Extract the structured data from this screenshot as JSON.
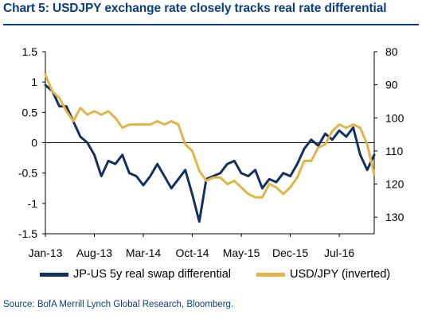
{
  "title": "Chart 5: USDJPY exchange rate closely tracks real rate differential",
  "source": "Source: BofA Merrill Lynch Global Research, Bloomberg.",
  "colors": {
    "title": "#0a3d82",
    "series1": "#13315f",
    "series2": "#e2b548"
  },
  "chart_data": {
    "type": "line",
    "title": "Chart 5: USDJPY exchange rate closely tracks real rate differential",
    "x_tick_labels": [
      "Jan-13",
      "Aug-13",
      "Mar-14",
      "Oct-14",
      "May-15",
      "Dec-15",
      "Jul-16"
    ],
    "x_ticks": [
      "2013-01",
      "2013-08",
      "2014-03",
      "2014-10",
      "2015-05",
      "2015-12",
      "2016-07"
    ],
    "xlim": [
      "2013-01",
      "2016-12"
    ],
    "y_left": {
      "lim": [
        -1.5,
        1.5
      ],
      "ticks": [
        "1.5",
        "1",
        "0.5",
        "0",
        "-0.5",
        "-1",
        "-1.5"
      ],
      "values": [
        1.5,
        1,
        0.5,
        0,
        -0.5,
        -1,
        -1.5
      ]
    },
    "y_right": {
      "lim": [
        80,
        135
      ],
      "inverted": true,
      "ticks": [
        "80",
        "90",
        "100",
        "110",
        "120",
        "130"
      ],
      "values": [
        80,
        90,
        100,
        110,
        120,
        130
      ]
    },
    "grid": false,
    "legend": "bottom",
    "series": [
      {
        "name": "JP-US 5y real swap differential",
        "axis": "left",
        "color": "#13315f",
        "x": [
          "2013-01",
          "2013-02",
          "2013-03",
          "2013-04",
          "2013-05",
          "2013-06",
          "2013-07",
          "2013-08",
          "2013-09",
          "2013-10",
          "2013-11",
          "2013-12",
          "2014-01",
          "2014-02",
          "2014-03",
          "2014-04",
          "2014-05",
          "2014-06",
          "2014-07",
          "2014-08",
          "2014-09",
          "2014-10",
          "2014-11",
          "2014-12",
          "2015-01",
          "2015-02",
          "2015-03",
          "2015-04",
          "2015-05",
          "2015-06",
          "2015-07",
          "2015-08",
          "2015-09",
          "2015-10",
          "2015-11",
          "2015-12",
          "2016-01",
          "2016-02",
          "2016-03",
          "2016-04",
          "2016-05",
          "2016-06",
          "2016-07",
          "2016-08",
          "2016-09",
          "2016-10",
          "2016-11",
          "2016-12"
        ],
        "values": [
          0.95,
          0.85,
          0.6,
          0.6,
          0.35,
          0.1,
          0.0,
          -0.2,
          -0.55,
          -0.3,
          -0.35,
          -0.2,
          -0.5,
          -0.55,
          -0.7,
          -0.55,
          -0.35,
          -0.55,
          -0.75,
          -0.6,
          -0.45,
          -0.85,
          -1.3,
          -0.6,
          -0.55,
          -0.5,
          -0.35,
          -0.3,
          -0.5,
          -0.55,
          -0.45,
          -0.75,
          -0.6,
          -0.65,
          -0.5,
          -0.55,
          -0.35,
          -0.1,
          0.05,
          -0.05,
          0.15,
          0.05,
          0.2,
          0.1,
          0.25,
          -0.2,
          -0.45,
          -0.2
        ]
      },
      {
        "name": "USD/JPY (inverted)",
        "axis": "right",
        "color": "#e2b548",
        "x": [
          "2013-01",
          "2013-02",
          "2013-03",
          "2013-04",
          "2013-05",
          "2013-06",
          "2013-07",
          "2013-08",
          "2013-09",
          "2013-10",
          "2013-11",
          "2013-12",
          "2014-01",
          "2014-02",
          "2014-03",
          "2014-04",
          "2014-05",
          "2014-06",
          "2014-07",
          "2014-08",
          "2014-09",
          "2014-10",
          "2014-11",
          "2014-12",
          "2015-01",
          "2015-02",
          "2015-03",
          "2015-04",
          "2015-05",
          "2015-06",
          "2015-07",
          "2015-08",
          "2015-09",
          "2015-10",
          "2015-11",
          "2015-12",
          "2016-01",
          "2016-02",
          "2016-03",
          "2016-04",
          "2016-05",
          "2016-06",
          "2016-07",
          "2016-08",
          "2016-09",
          "2016-10",
          "2016-11",
          "2016-12"
        ],
        "values": [
          87,
          92,
          94,
          98,
          101,
          97,
          99,
          98,
          99,
          98,
          100,
          103,
          102,
          102,
          102,
          102,
          101,
          102,
          101,
          102,
          108,
          110,
          116,
          119,
          118,
          118,
          120,
          119,
          121,
          123,
          124,
          124,
          120,
          121,
          123,
          121,
          118,
          113,
          113,
          109,
          108,
          104,
          102,
          103,
          102,
          103,
          108,
          117
        ]
      }
    ]
  }
}
